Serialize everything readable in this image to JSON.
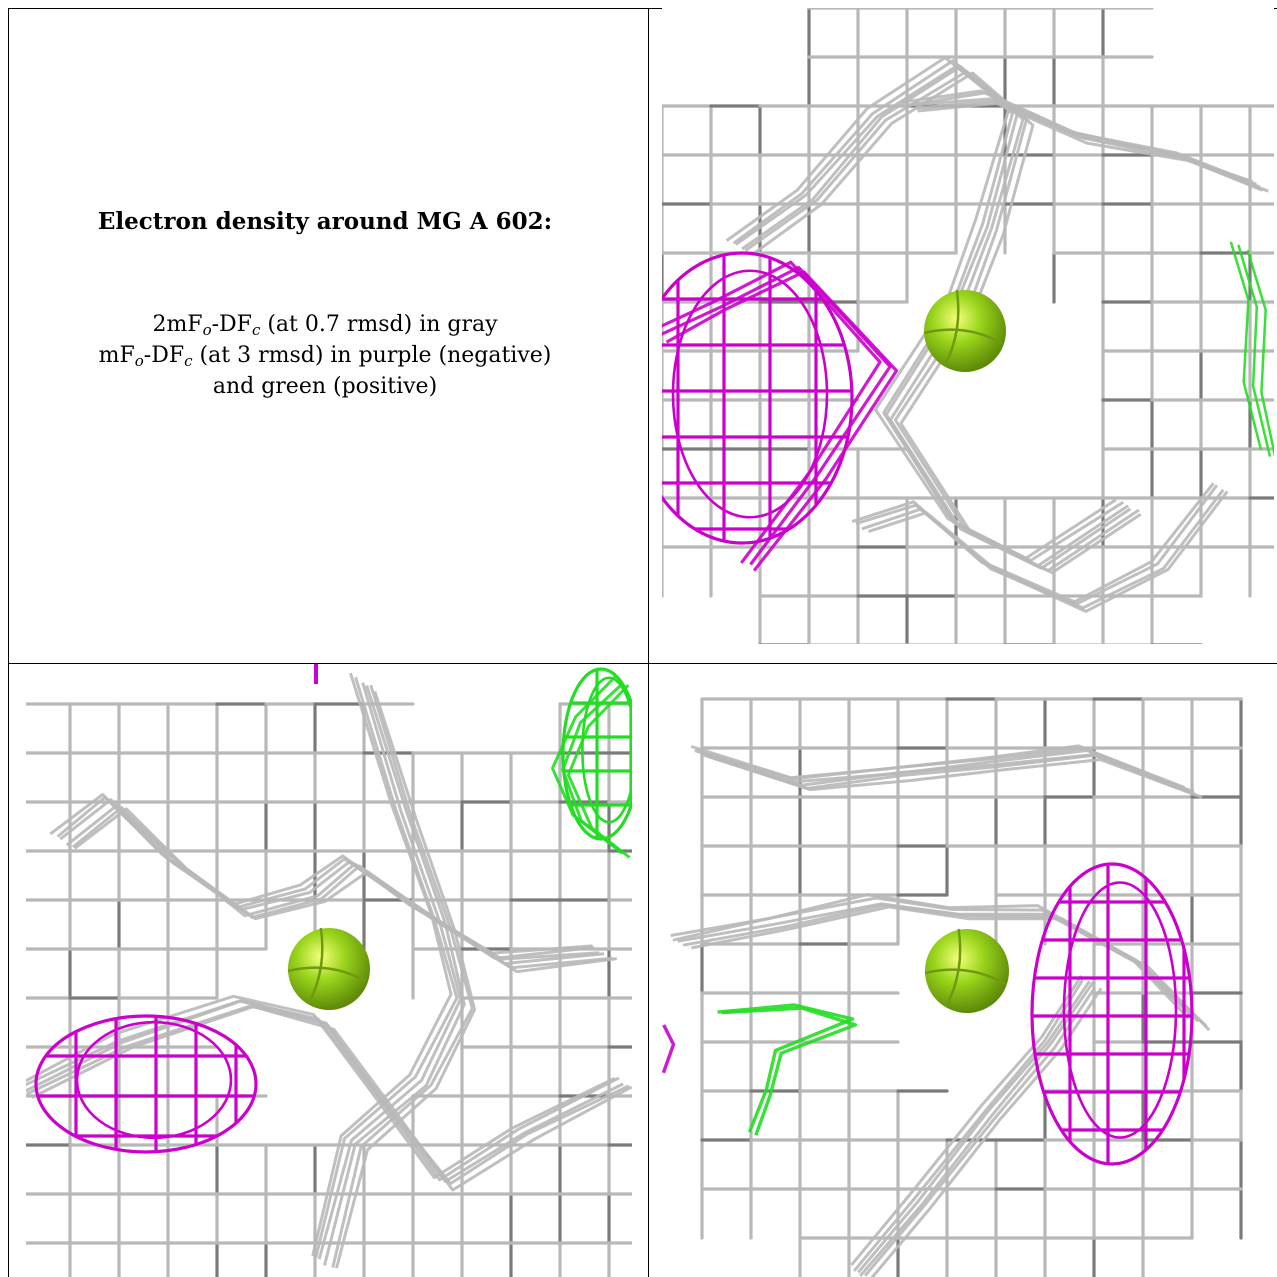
{
  "caption": {
    "title": "Electron density around MG A 602:",
    "line1_prefix": "2mF",
    "line1_sub1": "o",
    "line1_mid": "-DF",
    "line1_sub2": "c",
    "line1_suffix": " (at 0.7 rmsd) in gray",
    "line2_prefix": "mF",
    "line2_sub1": "o",
    "line2_mid": "-DF",
    "line2_sub2": "c",
    "line2_suffix": " (at 3 rmsd) in purple (negative)",
    "line3": "and green (positive)"
  },
  "colors": {
    "map_2fofc": "#b8b8b8",
    "map_2fofc_dark": "#7a7a7a",
    "map_fofc_negative": "#cc00cc",
    "map_fofc_positive": "#22dd22",
    "magnesium": "#9ad51c"
  },
  "panels": [
    {
      "view": "top-right"
    },
    {
      "view": "bottom-left"
    },
    {
      "view": "bottom-right"
    }
  ]
}
